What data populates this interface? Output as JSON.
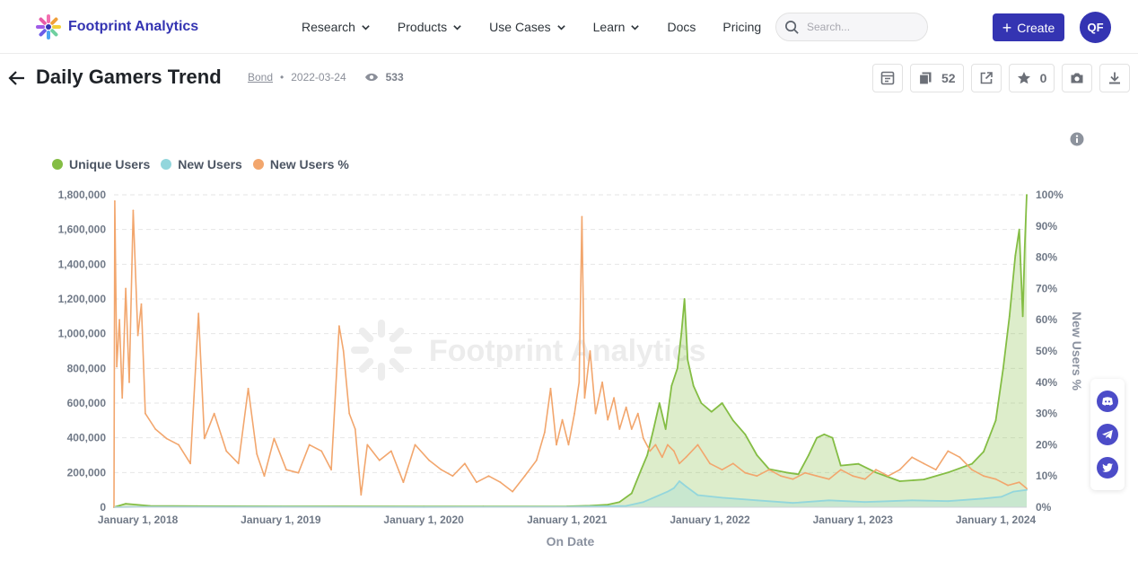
{
  "header": {
    "logo_text": "Footprint Analytics",
    "nav": [
      {
        "label": "Research",
        "dropdown": true
      },
      {
        "label": "Products",
        "dropdown": true
      },
      {
        "label": "Use Cases",
        "dropdown": true
      },
      {
        "label": "Learn",
        "dropdown": true
      },
      {
        "label": "Docs",
        "dropdown": false
      },
      {
        "label": "Pricing",
        "dropdown": false
      }
    ],
    "search_placeholder": "Search...",
    "create_label": "Create",
    "avatar_initials": "QF"
  },
  "dashboard": {
    "title": "Daily Gamers Trend",
    "author": "Bond",
    "date": "2022-03-24",
    "views": "533",
    "duplicate_count": "52",
    "favorite_count": "0"
  },
  "watermark": "Footprint Analytics",
  "colors": {
    "brand": "#3434b2",
    "unique_users": "#84bd44",
    "new_users": "#93d6dc",
    "new_users_pct": "#f2a66d"
  },
  "icons": [
    "back-arrow-icon",
    "eye-icon",
    "search-icon",
    "chevron-down-icon",
    "plus-icon",
    "table-icon",
    "duplicate-icon",
    "share-icon",
    "star-icon",
    "camera-icon",
    "download-icon",
    "info-icon",
    "discord-icon",
    "telegram-icon",
    "twitter-icon"
  ],
  "chart_data": {
    "type": "line",
    "legend": [
      "Unique Users",
      "New Users",
      "New Users %"
    ],
    "legend_position": "top-left",
    "xlabel": "On Date",
    "ylabel_left": "",
    "ylabel_right": "New Users %",
    "x_ticks": [
      "January 1, 2018",
      "January 1, 2019",
      "January 1, 2020",
      "January 1, 2021",
      "January 1, 2022",
      "January 1, 2023",
      "January 1, 2024"
    ],
    "y_left_ticks": [
      "0",
      "200,000",
      "400,000",
      "600,000",
      "800,000",
      "1,000,000",
      "1,200,000",
      "1,400,000",
      "1,600,000",
      "1,800,000"
    ],
    "y_right_ticks": [
      "0%",
      "10%",
      "20%",
      "30%",
      "40%",
      "50%",
      "60%",
      "70%",
      "80%",
      "90%",
      "100%"
    ],
    "ylim_left": [
      0,
      1800000
    ],
    "ylim_right": [
      0,
      100
    ],
    "x_range": [
      "2017-11-01",
      "2024-03-20"
    ],
    "grid": "horizontal dashed",
    "series": [
      {
        "name": "Unique Users",
        "axis": "left",
        "style": "area",
        "points": [
          [
            "2017-11-01",
            0
          ],
          [
            "2017-12-01",
            20000
          ],
          [
            "2018-02-01",
            8000
          ],
          [
            "2018-06-01",
            6000
          ],
          [
            "2019-01-01",
            5000
          ],
          [
            "2020-01-01",
            4000
          ],
          [
            "2020-06-01",
            4000
          ],
          [
            "2021-01-01",
            5000
          ],
          [
            "2021-03-01",
            9000
          ],
          [
            "2021-04-15",
            15000
          ],
          [
            "2021-05-15",
            30000
          ],
          [
            "2021-06-15",
            80000
          ],
          [
            "2021-07-10",
            220000
          ],
          [
            "2021-07-25",
            300000
          ],
          [
            "2021-08-10",
            450000
          ],
          [
            "2021-08-25",
            600000
          ],
          [
            "2021-09-10",
            450000
          ],
          [
            "2021-09-25",
            700000
          ],
          [
            "2021-10-10",
            800000
          ],
          [
            "2021-10-20",
            1000000
          ],
          [
            "2021-10-28",
            1200000
          ],
          [
            "2021-11-05",
            850000
          ],
          [
            "2021-11-20",
            700000
          ],
          [
            "2021-12-10",
            600000
          ],
          [
            "2022-01-05",
            550000
          ],
          [
            "2022-02-01",
            600000
          ],
          [
            "2022-03-01",
            500000
          ],
          [
            "2022-04-01",
            420000
          ],
          [
            "2022-05-01",
            300000
          ],
          [
            "2022-06-01",
            220000
          ],
          [
            "2022-07-15",
            200000
          ],
          [
            "2022-08-15",
            190000
          ],
          [
            "2022-09-10",
            300000
          ],
          [
            "2022-10-01",
            400000
          ],
          [
            "2022-10-20",
            420000
          ],
          [
            "2022-11-10",
            400000
          ],
          [
            "2022-12-01",
            240000
          ],
          [
            "2023-01-15",
            250000
          ],
          [
            "2023-03-01",
            200000
          ],
          [
            "2023-05-01",
            150000
          ],
          [
            "2023-07-01",
            160000
          ],
          [
            "2023-09-01",
            200000
          ],
          [
            "2023-11-01",
            250000
          ],
          [
            "2023-12-01",
            320000
          ],
          [
            "2024-01-01",
            500000
          ],
          [
            "2024-01-20",
            800000
          ],
          [
            "2024-02-05",
            1100000
          ],
          [
            "2024-02-20",
            1450000
          ],
          [
            "2024-03-01",
            1600000
          ],
          [
            "2024-03-10",
            1100000
          ],
          [
            "2024-03-15",
            1500000
          ],
          [
            "2024-03-20",
            1800000
          ]
        ]
      },
      {
        "name": "New Users",
        "axis": "left",
        "style": "area",
        "points": [
          [
            "2017-11-01",
            0
          ],
          [
            "2018-01-01",
            2000
          ],
          [
            "2019-01-01",
            1500
          ],
          [
            "2020-01-01",
            1200
          ],
          [
            "2021-01-01",
            2000
          ],
          [
            "2021-06-01",
            8000
          ],
          [
            "2021-07-15",
            30000
          ],
          [
            "2021-08-15",
            60000
          ],
          [
            "2021-09-15",
            90000
          ],
          [
            "2021-10-01",
            110000
          ],
          [
            "2021-10-15",
            150000
          ],
          [
            "2021-11-01",
            120000
          ],
          [
            "2021-12-01",
            70000
          ],
          [
            "2022-02-01",
            55000
          ],
          [
            "2022-05-01",
            40000
          ],
          [
            "2022-08-01",
            25000
          ],
          [
            "2022-11-01",
            40000
          ],
          [
            "2023-02-01",
            30000
          ],
          [
            "2023-06-01",
            40000
          ],
          [
            "2023-09-01",
            35000
          ],
          [
            "2023-12-01",
            50000
          ],
          [
            "2024-01-15",
            60000
          ],
          [
            "2024-02-15",
            90000
          ],
          [
            "2024-03-20",
            100000
          ]
        ]
      },
      {
        "name": "New Users %",
        "axis": "right",
        "style": "line",
        "points": [
          [
            "2017-11-01",
            0
          ],
          [
            "2017-11-03",
            98
          ],
          [
            "2017-11-08",
            45
          ],
          [
            "2017-11-15",
            60
          ],
          [
            "2017-11-22",
            35
          ],
          [
            "2017-12-01",
            70
          ],
          [
            "2017-12-10",
            40
          ],
          [
            "2017-12-20",
            95
          ],
          [
            "2018-01-01",
            55
          ],
          [
            "2018-01-10",
            65
          ],
          [
            "2018-01-20",
            30
          ],
          [
            "2018-02-15",
            25
          ],
          [
            "2018-03-15",
            22
          ],
          [
            "2018-04-15",
            20
          ],
          [
            "2018-05-15",
            14
          ],
          [
            "2018-06-05",
            62
          ],
          [
            "2018-06-20",
            22
          ],
          [
            "2018-07-15",
            30
          ],
          [
            "2018-08-15",
            18
          ],
          [
            "2018-09-15",
            14
          ],
          [
            "2018-10-10",
            38
          ],
          [
            "2018-11-01",
            17
          ],
          [
            "2018-11-20",
            10
          ],
          [
            "2018-12-15",
            22
          ],
          [
            "2019-01-15",
            12
          ],
          [
            "2019-02-15",
            11
          ],
          [
            "2019-03-15",
            20
          ],
          [
            "2019-04-15",
            18
          ],
          [
            "2019-05-10",
            12
          ],
          [
            "2019-05-30",
            58
          ],
          [
            "2019-06-10",
            50
          ],
          [
            "2019-06-25",
            30
          ],
          [
            "2019-07-10",
            25
          ],
          [
            "2019-07-25",
            4
          ],
          [
            "2019-08-10",
            20
          ],
          [
            "2019-09-10",
            15
          ],
          [
            "2019-10-10",
            18
          ],
          [
            "2019-11-10",
            8
          ],
          [
            "2019-12-10",
            20
          ],
          [
            "2020-01-15",
            15
          ],
          [
            "2020-02-15",
            12
          ],
          [
            "2020-03-15",
            10
          ],
          [
            "2020-04-15",
            14
          ],
          [
            "2020-05-15",
            8
          ],
          [
            "2020-06-15",
            10
          ],
          [
            "2020-07-15",
            8
          ],
          [
            "2020-08-15",
            5
          ],
          [
            "2020-09-15",
            10
          ],
          [
            "2020-10-15",
            15
          ],
          [
            "2020-11-05",
            24
          ],
          [
            "2020-11-20",
            38
          ],
          [
            "2020-12-05",
            20
          ],
          [
            "2020-12-20",
            28
          ],
          [
            "2021-01-05",
            20
          ],
          [
            "2021-01-20",
            30
          ],
          [
            "2021-02-01",
            40
          ],
          [
            "2021-02-08",
            93
          ],
          [
            "2021-02-15",
            35
          ],
          [
            "2021-03-01",
            50
          ],
          [
            "2021-03-15",
            30
          ],
          [
            "2021-04-01",
            40
          ],
          [
            "2021-04-15",
            28
          ],
          [
            "2021-05-01",
            35
          ],
          [
            "2021-05-15",
            25
          ],
          [
            "2021-06-01",
            32
          ],
          [
            "2021-06-15",
            25
          ],
          [
            "2021-07-01",
            30
          ],
          [
            "2021-07-15",
            22
          ],
          [
            "2021-08-01",
            18
          ],
          [
            "2021-08-15",
            20
          ],
          [
            "2021-09-01",
            16
          ],
          [
            "2021-09-15",
            20
          ],
          [
            "2021-10-01",
            18
          ],
          [
            "2021-10-15",
            14
          ],
          [
            "2021-11-01",
            16
          ],
          [
            "2021-12-01",
            20
          ],
          [
            "2022-01-01",
            14
          ],
          [
            "2022-02-01",
            12
          ],
          [
            "2022-03-01",
            14
          ],
          [
            "2022-04-01",
            11
          ],
          [
            "2022-05-01",
            10
          ],
          [
            "2022-06-01",
            12
          ],
          [
            "2022-07-01",
            10
          ],
          [
            "2022-08-01",
            9
          ],
          [
            "2022-09-01",
            11
          ],
          [
            "2022-10-01",
            10
          ],
          [
            "2022-11-01",
            9
          ],
          [
            "2022-12-01",
            12
          ],
          [
            "2023-01-01",
            10
          ],
          [
            "2023-02-01",
            9
          ],
          [
            "2023-03-01",
            12
          ],
          [
            "2023-04-01",
            10
          ],
          [
            "2023-05-01",
            12
          ],
          [
            "2023-06-01",
            16
          ],
          [
            "2023-07-01",
            14
          ],
          [
            "2023-08-01",
            12
          ],
          [
            "2023-09-01",
            18
          ],
          [
            "2023-10-01",
            16
          ],
          [
            "2023-11-01",
            12
          ],
          [
            "2023-12-01",
            10
          ],
          [
            "2024-01-01",
            9
          ],
          [
            "2024-02-01",
            7
          ],
          [
            "2024-03-01",
            8
          ],
          [
            "2024-03-20",
            6
          ]
        ]
      }
    ]
  }
}
